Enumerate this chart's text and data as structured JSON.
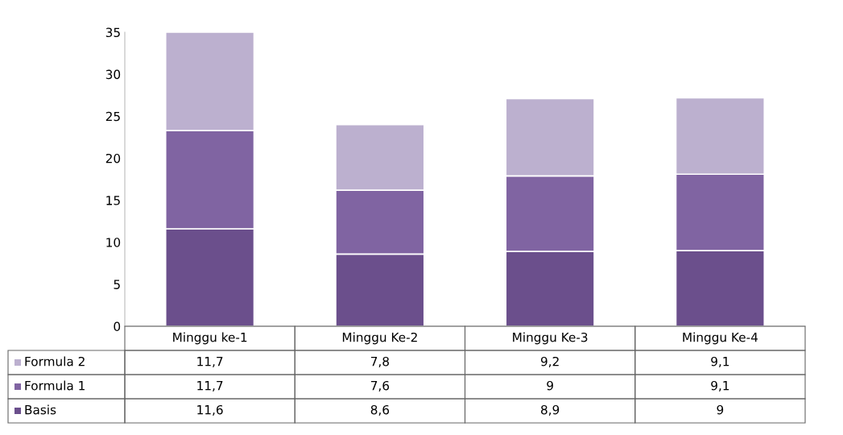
{
  "chart_data": {
    "type": "bar",
    "stacked": true,
    "categories": [
      "Minggu ke-1",
      "Minggu Ke-2",
      "Minggu Ke-3",
      "Minggu Ke-4"
    ],
    "series": [
      {
        "name": "Basis",
        "color": "#6b4f8c",
        "values": [
          11.6,
          8.6,
          8.9,
          9
        ],
        "value_labels": [
          "11,6",
          "8,6",
          "8,9",
          "9"
        ]
      },
      {
        "name": "Formula 1",
        "color": "#8064a2",
        "values": [
          11.7,
          7.6,
          9,
          9.1
        ],
        "value_labels": [
          "11,7",
          "7,6",
          "9",
          "9,1"
        ]
      },
      {
        "name": "Formula 2",
        "color": "#bcb0cf",
        "values": [
          11.7,
          7.8,
          9.2,
          9.1
        ],
        "value_labels": [
          "11,7",
          "7,8",
          "9,2",
          "9,1"
        ]
      }
    ],
    "ylim": [
      0,
      35
    ],
    "yticks": [
      0,
      5,
      10,
      15,
      20,
      25,
      30,
      35
    ],
    "grid": false,
    "legend": "bottom"
  }
}
